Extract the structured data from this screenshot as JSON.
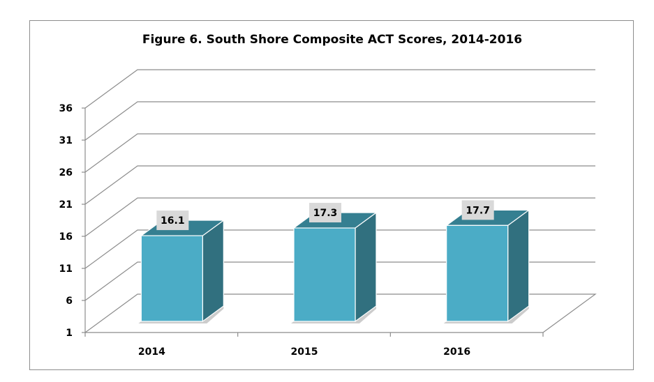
{
  "chart_data": {
    "type": "bar",
    "title": "Figure 6. South Shore Composite ACT Scores, 2014-2016",
    "xlabel": "",
    "ylabel": "",
    "categories": [
      "2014",
      "2015",
      "2016"
    ],
    "values": [
      16.1,
      17.3,
      17.7
    ],
    "data_labels": [
      "16.1",
      "17.3",
      "17.7"
    ],
    "ylim": [
      1,
      36
    ],
    "yticks": [
      1,
      6,
      11,
      16,
      21,
      26,
      31,
      36
    ],
    "ytick_labels": [
      "1",
      "6",
      "11",
      "16",
      "21",
      "26",
      "31",
      "36"
    ],
    "grid": true,
    "legend": "none",
    "style": "3d-column",
    "colors": {
      "bar_front": "#4bacc6",
      "bar_side": "#31707f",
      "bar_top": "#357f91",
      "label_box": "#d9d9d9",
      "grid": "#8c8c8c"
    }
  }
}
